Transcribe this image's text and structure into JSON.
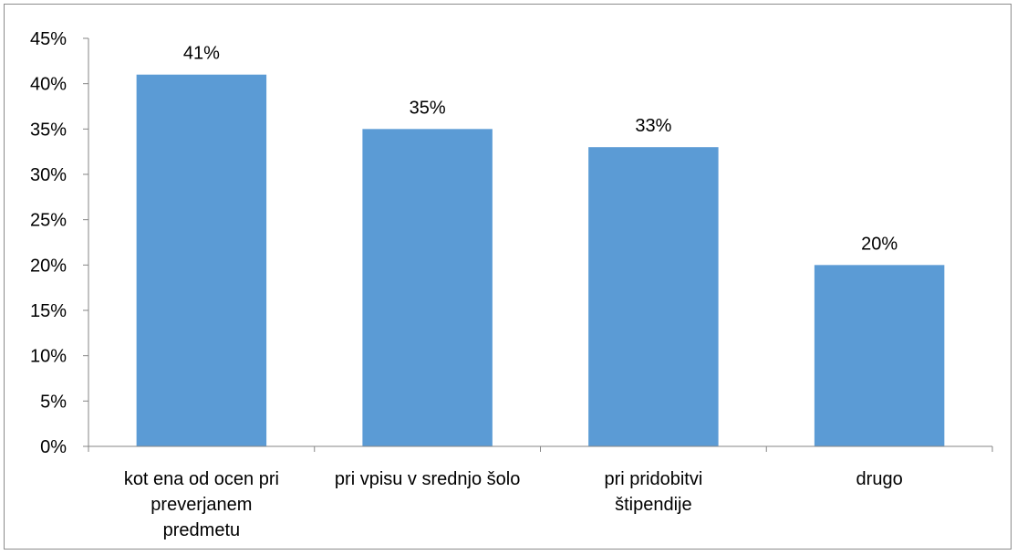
{
  "chart_data": {
    "type": "bar",
    "title": "",
    "xlabel": "",
    "ylabel": "",
    "categories": [
      [
        "kot ena od ocen pri",
        "preverjanem",
        "predmetu"
      ],
      [
        "pri vpisu v srednjo šolo"
      ],
      [
        "pri pridobitvi",
        "štipendije"
      ],
      [
        "drugo"
      ]
    ],
    "values": [
      41,
      35,
      33,
      20
    ],
    "data_labels": [
      "41%",
      "35%",
      "33%",
      "20%"
    ],
    "ylim": [
      0,
      45
    ],
    "yticks": [
      0,
      5,
      10,
      15,
      20,
      25,
      30,
      35,
      40,
      45
    ],
    "ytick_labels": [
      "0%",
      "5%",
      "10%",
      "15%",
      "20%",
      "25%",
      "30%",
      "35%",
      "40%",
      "45%"
    ],
    "grid": false,
    "legend": "none",
    "bar_color": "#5b9bd5",
    "axis_color": "#868686"
  }
}
